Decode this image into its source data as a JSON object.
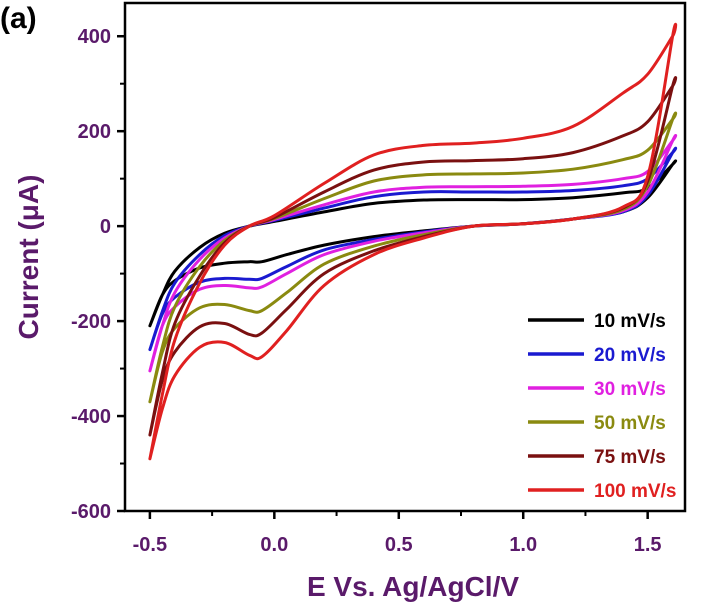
{
  "figure": {
    "panel_label": "(a)"
  },
  "chart_data": {
    "type": "line",
    "title": "",
    "xlabel": "E Vs. Ag/AgCl/V",
    "ylabel": "Current (μA)",
    "xlim": [
      -0.6,
      1.65
    ],
    "ylim": [
      -600,
      470
    ],
    "x_ticks": [
      -0.5,
      0.0,
      0.5,
      1.0,
      1.5
    ],
    "x_tick_labels": [
      "-0.5",
      "0.0",
      "0.5",
      "1.0",
      "1.5"
    ],
    "y_ticks": [
      -600,
      -400,
      -200,
      0,
      200,
      400
    ],
    "y_tick_labels": [
      "-600",
      "-400",
      "-200",
      "0",
      "200",
      "400"
    ],
    "grid": false,
    "legend_position": "bottom-right",
    "series": [
      {
        "name": "10 mV/s",
        "color": "#000000",
        "x": [
          -0.5,
          -0.45,
          -0.4,
          -0.3,
          -0.2,
          -0.1,
          0.0,
          0.2,
          0.4,
          0.6,
          0.8,
          1.0,
          1.2,
          1.4,
          1.5,
          1.6,
          1.6,
          1.5,
          1.4,
          1.2,
          1.0,
          0.8,
          0.6,
          0.4,
          0.2,
          0.05,
          -0.05,
          -0.1,
          -0.2,
          -0.3,
          -0.4,
          -0.45,
          -0.5
        ],
        "y": [
          -210,
          -145,
          -95,
          -45,
          -15,
          0,
          10,
          30,
          48,
          55,
          56,
          56,
          60,
          70,
          80,
          130,
          130,
          60,
          30,
          15,
          5,
          0,
          -10,
          -22,
          -40,
          -60,
          -75,
          -75,
          -78,
          -88,
          -115,
          -145,
          -210
        ]
      },
      {
        "name": "20 mV/s",
        "color": "#1a1ad0",
        "x": [
          -0.5,
          -0.45,
          -0.4,
          -0.3,
          -0.2,
          -0.1,
          0.0,
          0.2,
          0.4,
          0.6,
          0.8,
          1.0,
          1.2,
          1.4,
          1.5,
          1.6,
          1.6,
          1.5,
          1.4,
          1.2,
          1.0,
          0.8,
          0.6,
          0.4,
          0.2,
          0.05,
          -0.05,
          -0.1,
          -0.2,
          -0.3,
          -0.4,
          -0.45,
          -0.5
        ],
        "y": [
          -260,
          -180,
          -120,
          -60,
          -20,
          0,
          12,
          38,
          62,
          72,
          72,
          72,
          75,
          85,
          100,
          155,
          155,
          65,
          30,
          15,
          5,
          0,
          -12,
          -28,
          -50,
          -85,
          -110,
          -112,
          -110,
          -118,
          -150,
          -185,
          -260
        ]
      },
      {
        "name": "30 mV/s",
        "color": "#e020e0",
        "x": [
          -0.5,
          -0.45,
          -0.4,
          -0.3,
          -0.2,
          -0.1,
          0.0,
          0.2,
          0.4,
          0.6,
          0.8,
          1.0,
          1.2,
          1.4,
          1.5,
          1.6,
          1.6,
          1.5,
          1.4,
          1.2,
          1.0,
          0.8,
          0.6,
          0.4,
          0.2,
          0.05,
          -0.05,
          -0.1,
          -0.2,
          -0.3,
          -0.4,
          -0.45,
          -0.5
        ],
        "y": [
          -305,
          -210,
          -140,
          -70,
          -25,
          0,
          14,
          45,
          72,
          82,
          83,
          84,
          88,
          100,
          115,
          180,
          180,
          72,
          32,
          15,
          5,
          0,
          -14,
          -32,
          -60,
          -100,
          -128,
          -130,
          -125,
          -133,
          -170,
          -210,
          -305
        ]
      },
      {
        "name": "50 mV/s",
        "color": "#8a8a10",
        "x": [
          -0.5,
          -0.45,
          -0.4,
          -0.3,
          -0.2,
          -0.1,
          0.0,
          0.2,
          0.4,
          0.6,
          0.8,
          1.0,
          1.2,
          1.4,
          1.5,
          1.6,
          1.6,
          1.5,
          1.4,
          1.2,
          1.0,
          0.8,
          0.6,
          0.4,
          0.2,
          0.05,
          -0.05,
          -0.1,
          -0.2,
          -0.3,
          -0.4,
          -0.45,
          -0.5
        ],
        "y": [
          -370,
          -255,
          -170,
          -85,
          -30,
          0,
          16,
          58,
          95,
          108,
          110,
          112,
          120,
          140,
          160,
          225,
          225,
          85,
          35,
          15,
          5,
          0,
          -18,
          -42,
          -80,
          -140,
          -178,
          -178,
          -165,
          -172,
          -215,
          -265,
          -370
        ]
      },
      {
        "name": "75 mV/s",
        "color": "#7a1010",
        "x": [
          -0.5,
          -0.45,
          -0.4,
          -0.3,
          -0.2,
          -0.1,
          0.0,
          0.2,
          0.4,
          0.6,
          0.8,
          1.0,
          1.2,
          1.4,
          1.5,
          1.6,
          1.6,
          1.5,
          1.4,
          1.2,
          1.0,
          0.8,
          0.6,
          0.4,
          0.2,
          0.05,
          -0.05,
          -0.1,
          -0.2,
          -0.3,
          -0.4,
          -0.45,
          -0.5
        ],
        "y": [
          -440,
          -310,
          -205,
          -105,
          -35,
          0,
          18,
          72,
          118,
          135,
          138,
          142,
          155,
          190,
          220,
          295,
          295,
          95,
          38,
          15,
          5,
          0,
          -22,
          -52,
          -100,
          -175,
          -225,
          -228,
          -205,
          -212,
          -265,
          -325,
          -440
        ]
      },
      {
        "name": "100 mV/s",
        "color": "#e02020",
        "x": [
          -0.5,
          -0.45,
          -0.4,
          -0.3,
          -0.2,
          -0.1,
          0.0,
          0.2,
          0.4,
          0.6,
          0.8,
          1.0,
          1.2,
          1.4,
          1.5,
          1.6,
          1.6,
          1.5,
          1.4,
          1.2,
          1.0,
          0.8,
          0.6,
          0.4,
          0.2,
          0.05,
          -0.05,
          -0.1,
          -0.2,
          -0.3,
          -0.4,
          -0.45,
          -0.5
        ],
        "y": [
          -490,
          -355,
          -240,
          -120,
          -40,
          0,
          22,
          90,
          150,
          170,
          175,
          185,
          210,
          280,
          320,
          400,
          400,
          105,
          40,
          15,
          5,
          0,
          -25,
          -60,
          -125,
          -220,
          -275,
          -272,
          -245,
          -255,
          -315,
          -385,
          -490
        ]
      }
    ]
  }
}
